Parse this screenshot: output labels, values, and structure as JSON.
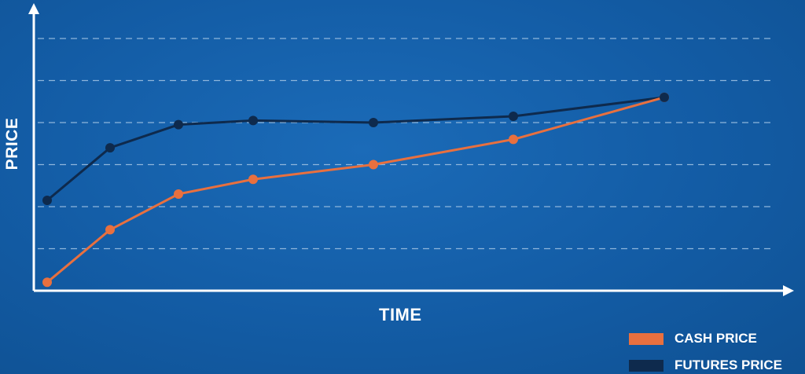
{
  "chart_data": {
    "type": "line",
    "xlabel": "TIME",
    "ylabel": "PRICE",
    "x": [
      0,
      1,
      2,
      3,
      4,
      5,
      6
    ],
    "series": [
      {
        "name": "CASH PRICE",
        "color": "#e8703f",
        "values": [
          0.2,
          1.45,
          2.3,
          2.65,
          3.0,
          3.6,
          4.6
        ]
      },
      {
        "name": "FUTURES PRICE",
        "color": "#0e2a4d",
        "values": [
          2.15,
          3.4,
          3.95,
          4.05,
          4.0,
          4.15,
          4.6
        ]
      }
    ],
    "ylim": [
      0,
      6
    ],
    "grid": true,
    "legend_position": "bottom-right"
  },
  "colors": {
    "background": "#135ca5",
    "axis": "#ffffff",
    "grid": "#8fb6dc"
  }
}
